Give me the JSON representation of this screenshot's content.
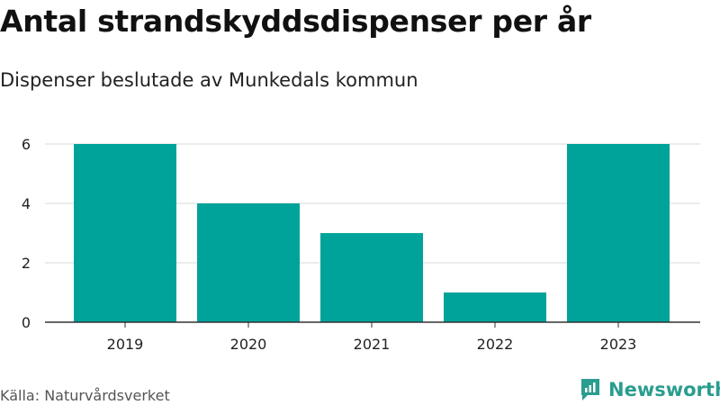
{
  "title": "Antal strandskyddsdispenser per år",
  "subtitle": "Dispenser beslutade av Munkedals kommun",
  "source": "Källa: Naturvårdsverket",
  "brand": {
    "name": "Newsworthy",
    "icon": "newsworthy-logo-icon",
    "color": "#2a9d8f"
  },
  "chart_data": {
    "type": "bar",
    "categories": [
      "2019",
      "2020",
      "2021",
      "2022",
      "2023"
    ],
    "values": [
      6,
      4,
      3,
      1,
      6
    ],
    "yticks": [
      0,
      2,
      4,
      6
    ],
    "ylim": [
      0,
      6
    ],
    "grid": true,
    "bar_color": "#00a39a",
    "xlabel": "",
    "ylabel": ""
  }
}
